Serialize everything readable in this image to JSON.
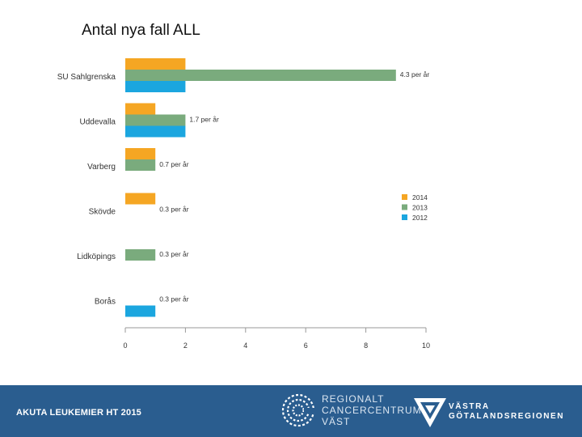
{
  "title": "Antal nya fall ALL",
  "footer": {
    "text": "AKUTA LEUKEMIER HT 2015",
    "rcc_lines": [
      "REGIONALT",
      "CANCERCENTRUM",
      "VÄST"
    ],
    "vgr_lines": [
      "VÄSTRA",
      "GÖTALANDSREGIONEN"
    ]
  },
  "colors": {
    "2014": "#f5a623",
    "2013": "#7aab7d",
    "2012": "#1ba6df",
    "footer": "#2a5d8f"
  },
  "chart_data": {
    "type": "bar",
    "orientation": "horizontal",
    "categories": [
      "SU Sahlgrenska",
      "Uddevalla",
      "Varberg",
      "Skövde",
      "Lidköpings",
      "Borås"
    ],
    "series": [
      {
        "name": "2014",
        "values": [
          2,
          1,
          1,
          1,
          0,
          0
        ]
      },
      {
        "name": "2013",
        "values": [
          9,
          2,
          1,
          0,
          1,
          0
        ]
      },
      {
        "name": "2012",
        "values": [
          2,
          2,
          0,
          0,
          0,
          1
        ]
      }
    ],
    "annotations": [
      "4.3 per år",
      "1.7 per år",
      "0.7 per år",
      "0.3 per år",
      "0.3 per år",
      "0.3 per år"
    ],
    "xlim": [
      0,
      10
    ],
    "xticks": [
      0,
      2,
      4,
      6,
      8,
      10
    ],
    "legend_order": [
      "2014",
      "2013",
      "2012"
    ],
    "legend_position": "right",
    "grid": false
  }
}
